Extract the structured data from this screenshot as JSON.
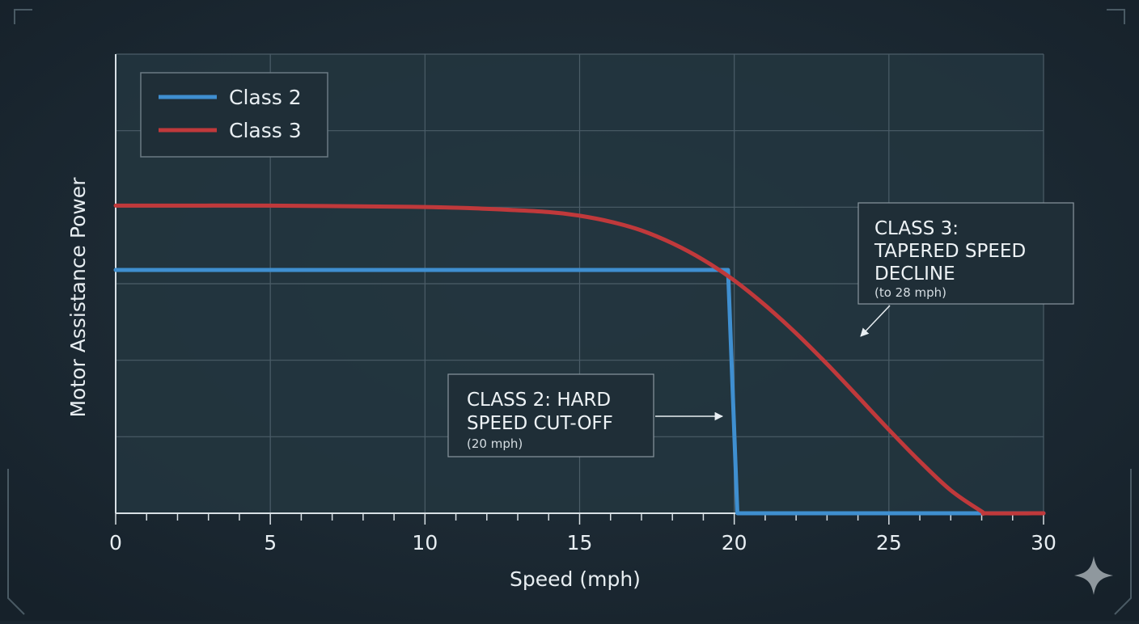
{
  "chart_data": {
    "type": "line",
    "xlabel": "Speed (mph)",
    "ylabel": "Motor Assistance Power",
    "xlim": [
      0,
      30
    ],
    "ylim": [
      0,
      100
    ],
    "x_ticks": [
      "0",
      "5",
      "10",
      "15",
      "20",
      "25",
      "30"
    ],
    "grid": true,
    "legend_placement": "top-left",
    "series": [
      {
        "name": "Class 2",
        "color": "#3f8fd0",
        "x": [
          0,
          19.8,
          20.1,
          30
        ],
        "y": [
          53,
          53,
          0,
          0
        ]
      },
      {
        "name": "Class 3",
        "color": "#c0393b",
        "x": [
          0,
          5,
          10,
          12,
          14,
          15,
          16,
          17,
          18,
          19,
          20,
          21,
          22,
          23,
          24,
          25,
          26,
          27,
          28,
          28.2,
          30
        ],
        "y": [
          67,
          67,
          66.7,
          66.3,
          65.6,
          64.8,
          63.5,
          61.6,
          58.8,
          55.2,
          50.7,
          45.3,
          39.2,
          32.5,
          25.4,
          18.2,
          11.3,
          5.0,
          0.4,
          0,
          0
        ]
      }
    ],
    "annotations": [
      {
        "id": "class2",
        "title_lines": [
          "CLASS 2: HARD",
          "SPEED CUT-OFF"
        ],
        "note": "(20 mph)",
        "points_to": [
          19.9,
          20
        ]
      },
      {
        "id": "class3",
        "title_lines": [
          "CLASS 3:",
          "TAPERED SPEED",
          "DECLINE"
        ],
        "note": "(to 28 mph)",
        "points_to": [
          24,
          38
        ]
      }
    ]
  }
}
